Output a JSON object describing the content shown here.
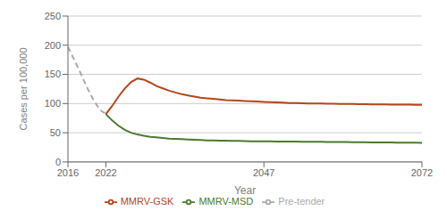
{
  "chart_data": {
    "type": "line",
    "title": "",
    "xlabel": "Year",
    "ylabel": "Cases per 100,000",
    "xlim": [
      2016,
      2072
    ],
    "ylim": [
      0,
      250
    ],
    "xticks": [
      2016,
      2022,
      2047,
      2072
    ],
    "yticks": [
      0,
      50,
      100,
      150,
      200,
      250
    ],
    "grid": true,
    "legend": "bottom",
    "series": [
      {
        "name": "Pre-tender",
        "color": "#aaaaaa",
        "line_style": "dashed",
        "x": [
          2016,
          2017,
          2018,
          2019,
          2020,
          2021,
          2022
        ],
        "values": [
          197,
          175,
          152,
          128,
          107,
          90,
          82
        ]
      },
      {
        "name": "MMRV-MSD",
        "color": "#4a7a2e",
        "line_style": "solid",
        "x": [
          2022,
          2023,
          2024,
          2025,
          2026,
          2027,
          2028,
          2029,
          2030,
          2031,
          2032,
          2033,
          2034,
          2035,
          2036,
          2037,
          2038,
          2039,
          2040,
          2041,
          2042,
          2043,
          2044,
          2045,
          2046,
          2047,
          2048,
          2049,
          2050,
          2051,
          2052,
          2053,
          2054,
          2055,
          2056,
          2057,
          2058,
          2059,
          2060,
          2061,
          2062,
          2063,
          2064,
          2065,
          2066,
          2067,
          2068,
          2069,
          2070,
          2071,
          2072
        ],
        "values": [
          82,
          71,
          62,
          55,
          50,
          47,
          45,
          43,
          42,
          41,
          40,
          39.5,
          39,
          38.5,
          38,
          37.5,
          37,
          36.8,
          36.5,
          36.3,
          36.1,
          35.9,
          35.7,
          35.5,
          35.4,
          35.3,
          35.2,
          35.1,
          35,
          34.9,
          34.8,
          34.7,
          34.6,
          34.5,
          34.4,
          34.3,
          34.2,
          34.1,
          34,
          33.9,
          33.8,
          33.7,
          33.6,
          33.5,
          33.4,
          33.3,
          33.2,
          33.1,
          33,
          32.9,
          32.8
        ]
      },
      {
        "name": "MMRV-GSK",
        "color": "#b5451b",
        "line_style": "solid",
        "x": [
          2022,
          2023,
          2024,
          2025,
          2026,
          2027,
          2028,
          2029,
          2030,
          2031,
          2032,
          2033,
          2034,
          2035,
          2036,
          2037,
          2038,
          2039,
          2040,
          2041,
          2042,
          2043,
          2044,
          2045,
          2046,
          2047,
          2048,
          2049,
          2050,
          2051,
          2052,
          2053,
          2054,
          2055,
          2056,
          2057,
          2058,
          2059,
          2060,
          2061,
          2062,
          2063,
          2064,
          2065,
          2066,
          2067,
          2068,
          2069,
          2070,
          2071,
          2072
        ],
        "values": [
          82,
          96,
          112,
          126,
          137,
          143,
          141,
          136,
          130,
          126,
          122,
          119,
          116,
          114,
          112,
          110,
          109,
          108,
          107,
          106,
          105.5,
          105,
          104.5,
          104,
          103.5,
          103,
          102.5,
          102,
          101.5,
          101,
          100.8,
          100.5,
          100.3,
          100.1,
          100,
          99.8,
          99.6,
          99.5,
          99.3,
          99.2,
          99,
          98.9,
          98.7,
          98.6,
          98.5,
          98.4,
          98.3,
          98.2,
          98.1,
          98,
          97.9
        ]
      }
    ]
  }
}
